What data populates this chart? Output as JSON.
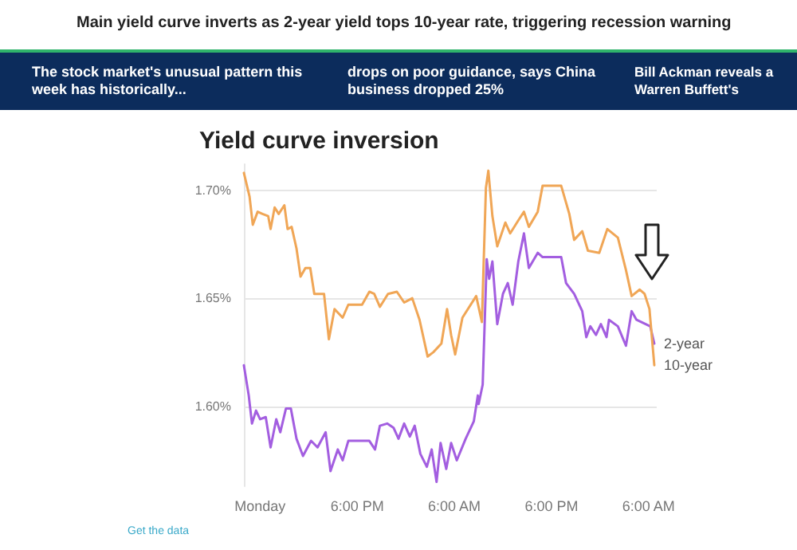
{
  "chart_data": {
    "type": "line",
    "title": "Yield curve inversion",
    "annotations": [
      "Main yield curve inverts as 2-year yield tops 10-year rate, triggering recession warning",
      "The stock market's unusual pattern this week has historically...",
      "drops on poor guidance, says China business dropped 25%",
      "Bill Ackman reveals a Warren Buffett's",
      "Get the data"
    ],
    "xlim": [
      "--08-12T04:00",
      "--08-14T07:00"
    ],
    "xticks": [
      {
        "value": "--08-12T06:00",
        "label": "Monday"
      },
      {
        "value": "--08-12T18:00",
        "label": "6:00 PM"
      },
      {
        "value": "--08-13T06:00",
        "label": "6:00 AM"
      },
      {
        "value": "--08-13T18:00",
        "label": "6:00 PM"
      },
      {
        "value": "--08-14T06:00",
        "label": "6:00 AM"
      }
    ],
    "ylim": [
      1.563,
      1.712
    ],
    "yticks": [
      {
        "value": 1.6,
        "label": "1.60%"
      },
      {
        "value": 1.65,
        "label": "1.65%"
      },
      {
        "value": 1.7,
        "label": "1.70%"
      }
    ],
    "grid": "y",
    "legend": false,
    "marker": "none",
    "line_style": "solid",
    "series": [
      {
        "name": "2-year",
        "color": "#a35ee0",
        "x": [
          "--08-12T04:00",
          "--08-12T04:36",
          "--08-12T05:00",
          "--08-12T05:30",
          "--08-12T06:00",
          "--08-12T06:42",
          "--08-12T07:18",
          "--08-12T08:00",
          "--08-12T08:30",
          "--08-12T09:12",
          "--08-12T09:48",
          "--08-12T10:30",
          "--08-12T11:18",
          "--08-12T12:18",
          "--08-12T13:06",
          "--08-12T14:06",
          "--08-12T14:42",
          "--08-12T15:36",
          "--08-12T16:12",
          "--08-12T16:54",
          "--08-12T19:30",
          "--08-12T20:12",
          "--08-12T20:48",
          "--08-12T21:42",
          "--08-12T22:30",
          "--08-12T23:06",
          "--08-12T23:48",
          "--08-13T00:30",
          "--08-13T01:06",
          "--08-13T01:48",
          "--08-13T02:36",
          "--08-13T03:12",
          "--08-13T03:48",
          "--08-13T04:18",
          "--08-13T05:00",
          "--08-13T05:36",
          "--08-13T06:18",
          "--08-13T07:24",
          "--08-13T08:24",
          "--08-13T08:54",
          "--08-13T09:00",
          "--08-13T09:30",
          "--08-13T10:00",
          "--08-13T10:18",
          "--08-13T10:42",
          "--08-13T11:18",
          "--08-13T12:00",
          "--08-13T12:36",
          "--08-13T13:12",
          "--08-13T13:54",
          "--08-13T14:36",
          "--08-13T15:12",
          "--08-13T16:18",
          "--08-13T16:54",
          "--08-13T19:12",
          "--08-13T19:48",
          "--08-13T20:48",
          "--08-13T21:48",
          "--08-13T22:18",
          "--08-13T22:48",
          "--08-13T23:30",
          "--08-14T00:06",
          "--08-14T00:48",
          "--08-14T01:06",
          "--08-14T02:12",
          "--08-14T03:12",
          "--08-14T03:54",
          "--08-14T04:30",
          "--08-14T06:12",
          "--08-14T06:42"
        ],
        "values": [
          1.619,
          1.605,
          1.592,
          1.598,
          1.594,
          1.595,
          1.581,
          1.594,
          1.588,
          1.599,
          1.599,
          1.585,
          1.577,
          1.584,
          1.581,
          1.588,
          1.57,
          1.58,
          1.575,
          1.584,
          1.584,
          1.58,
          1.591,
          1.592,
          1.59,
          1.585,
          1.592,
          1.586,
          1.591,
          1.578,
          1.572,
          1.58,
          1.565,
          1.583,
          1.571,
          1.583,
          1.575,
          1.585,
          1.593,
          1.605,
          1.601,
          1.61,
          1.668,
          1.659,
          1.667,
          1.638,
          1.652,
          1.657,
          1.647,
          1.667,
          1.68,
          1.664,
          1.671,
          1.669,
          1.669,
          1.657,
          1.652,
          1.644,
          1.632,
          1.637,
          1.633,
          1.638,
          1.632,
          1.64,
          1.637,
          1.628,
          1.644,
          1.64,
          1.637,
          1.629
        ]
      },
      {
        "name": "10-year",
        "color": "#f0a656",
        "x": [
          "--08-12T04:00",
          "--08-12T04:42",
          "--08-12T05:06",
          "--08-12T05:42",
          "--08-12T06:18",
          "--08-12T07:00",
          "--08-12T07:18",
          "--08-12T07:48",
          "--08-12T08:18",
          "--08-12T09:00",
          "--08-12T09:24",
          "--08-12T09:54",
          "--08-12T10:30",
          "--08-12T11:00",
          "--08-12T11:36",
          "--08-12T12:12",
          "--08-12T12:42",
          "--08-12T13:12",
          "--08-12T13:54",
          "--08-12T14:30",
          "--08-12T15:12",
          "--08-12T16:12",
          "--08-12T16:54",
          "--08-12T18:36",
          "--08-12T19:30",
          "--08-12T20:06",
          "--08-12T20:48",
          "--08-12T21:48",
          "--08-12T22:54",
          "--08-12T23:48",
          "--08-13T00:48",
          "--08-13T01:42",
          "--08-13T02:42",
          "--08-13T03:24",
          "--08-13T04:24",
          "--08-13T05:06",
          "--08-13T05:36",
          "--08-13T06:06",
          "--08-13T07:00",
          "--08-13T08:42",
          "--08-13T09:24",
          "--08-13T09:54",
          "--08-13T10:12",
          "--08-13T10:42",
          "--08-13T11:18",
          "--08-13T12:18",
          "--08-13T12:54",
          "--08-13T13:54",
          "--08-13T14:36",
          "--08-13T15:12",
          "--08-13T16:18",
          "--08-13T16:54",
          "--08-13T19:12",
          "--08-13T20:12",
          "--08-13T20:48",
          "--08-13T21:48",
          "--08-13T22:30",
          "--08-13T23:54",
          "--08-14T00:54",
          "--08-14T02:12",
          "--08-14T03:12",
          "--08-14T03:54",
          "--08-14T04:54",
          "--08-14T05:30",
          "--08-14T06:06",
          "--08-14T06:42"
        ],
        "values": [
          1.708,
          1.697,
          1.684,
          1.69,
          1.689,
          1.688,
          1.682,
          1.692,
          1.689,
          1.693,
          1.682,
          1.683,
          1.673,
          1.66,
          1.664,
          1.664,
          1.652,
          1.652,
          1.652,
          1.631,
          1.645,
          1.641,
          1.647,
          1.647,
          1.653,
          1.652,
          1.646,
          1.652,
          1.653,
          1.648,
          1.65,
          1.64,
          1.623,
          1.625,
          1.629,
          1.645,
          1.633,
          1.624,
          1.641,
          1.651,
          1.639,
          1.701,
          1.709,
          1.688,
          1.674,
          1.685,
          1.68,
          1.686,
          1.69,
          1.683,
          1.69,
          1.702,
          1.702,
          1.689,
          1.677,
          1.681,
          1.672,
          1.671,
          1.682,
          1.678,
          1.663,
          1.651,
          1.654,
          1.652,
          1.645,
          1.619
        ]
      }
    ]
  }
}
